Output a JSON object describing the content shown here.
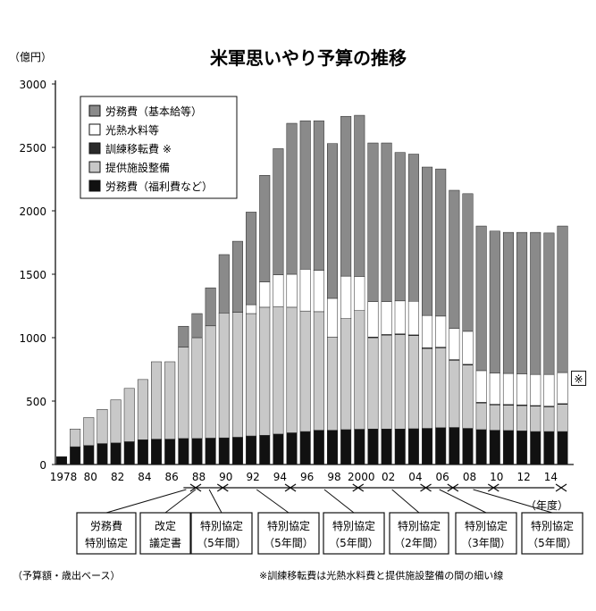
{
  "chart_data": {
    "type": "bar",
    "stacked": true,
    "title": "米軍思いやり予算の推移",
    "ylabel": "（億円）",
    "xlabel": "（年度）",
    "ylim": [
      0,
      3000
    ],
    "yticks": [
      0,
      500,
      1000,
      1500,
      2000,
      2500,
      3000
    ],
    "grid": false,
    "legend_position": "top-left",
    "categories": [
      "1978",
      "1979",
      "1980",
      "1981",
      "1982",
      "1983",
      "1984",
      "1985",
      "1986",
      "1987",
      "1988",
      "1989",
      "1990",
      "1991",
      "1992",
      "1993",
      "1994",
      "1995",
      "1996",
      "1997",
      "1998",
      "1999",
      "2000",
      "2001",
      "2002",
      "2003",
      "2004",
      "2005",
      "2006",
      "2007",
      "2008",
      "2009",
      "2010",
      "2011",
      "2012",
      "2013",
      "2014",
      "2015"
    ],
    "xtick_labels": [
      "1978",
      "80",
      "82",
      "84",
      "86",
      "88",
      "90",
      "92",
      "94",
      "96",
      "98",
      "2000",
      "02",
      "04",
      "06",
      "08",
      "10",
      "12",
      "14"
    ],
    "series": [
      {
        "name": "労務費（福利費など）",
        "color": "#111111",
        "values": [
          62,
          140,
          150,
          165,
          170,
          180,
          195,
          200,
          200,
          205,
          205,
          208,
          210,
          215,
          225,
          230,
          240,
          250,
          260,
          270,
          270,
          275,
          278,
          280,
          280,
          280,
          282,
          285,
          290,
          292,
          285,
          275,
          270,
          268,
          265,
          260,
          260,
          260
        ]
      },
      {
        "name": "提供施設整備",
        "color": "#c8c8c8",
        "values": [
          0,
          140,
          220,
          270,
          340,
          420,
          475,
          610,
          610,
          720,
          795,
          885,
          985,
          985,
          965,
          1010,
          1005,
          990,
          950,
          935,
          735,
          875,
          935,
          720,
          740,
          745,
          735,
          630,
          630,
          530,
          500,
          210,
          200,
          200,
          200,
          200,
          195,
          215
        ]
      },
      {
        "name": "訓練移転費 ※",
        "color": "#2a2a2a",
        "values": [
          0,
          0,
          0,
          0,
          0,
          0,
          0,
          0,
          0,
          0,
          0,
          0,
          0,
          0,
          0,
          0,
          0,
          0,
          0,
          0,
          0,
          0,
          0,
          5,
          5,
          5,
          5,
          5,
          5,
          5,
          5,
          5,
          5,
          5,
          5,
          5,
          5,
          5
        ]
      },
      {
        "name": "光熱水料等",
        "color": "#ffffff",
        "values": [
          0,
          0,
          0,
          0,
          0,
          0,
          0,
          0,
          0,
          0,
          0,
          0,
          0,
          0,
          70,
          200,
          250,
          260,
          330,
          325,
          305,
          335,
          270,
          280,
          260,
          260,
          265,
          255,
          245,
          245,
          260,
          250,
          245,
          245,
          245,
          245,
          250,
          245
        ]
      },
      {
        "name": "労務費（基本給等）",
        "color": "#8a8a8a",
        "values": [
          0,
          0,
          0,
          0,
          0,
          0,
          0,
          0,
          0,
          165,
          190,
          300,
          460,
          560,
          730,
          840,
          995,
          1190,
          1170,
          1180,
          1220,
          1260,
          1270,
          1250,
          1250,
          1170,
          1160,
          1170,
          1160,
          1090,
          1085,
          1140,
          1120,
          1112,
          1115,
          1120,
          1115,
          1155
        ]
      }
    ],
    "annotations": {
      "marker_2015": "※",
      "footnote_left": "（予算額・歳出ベース）",
      "footnote_right": "※訓練移転費は光熱水料費と提供施設整備の間の細い線"
    },
    "agreement_boxes": [
      {
        "line1": "労務費",
        "line2": "特別協定"
      },
      {
        "line1": "改定",
        "line2": "議定書"
      },
      {
        "line1": "特別協定",
        "line2": "（5年間）"
      },
      {
        "line1": "特別協定",
        "line2": "（5年間）"
      },
      {
        "line1": "特別協定",
        "line2": "（5年間）"
      },
      {
        "line1": "特別協定",
        "line2": "（2年間）"
      },
      {
        "line1": "特別協定",
        "line2": "（3年間）"
      },
      {
        "line1": "特別協定",
        "line2": "（5年間）"
      }
    ]
  }
}
